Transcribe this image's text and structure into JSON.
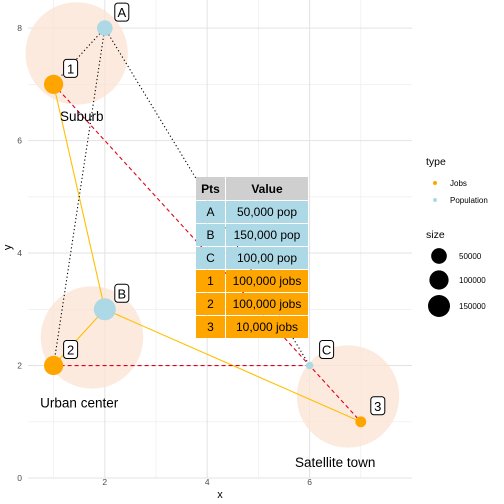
{
  "chart_data": {
    "type": "scatter",
    "xlabel": "x",
    "ylabel": "y",
    "xlim": [
      0.5,
      8
    ],
    "ylim": [
      0,
      8.5
    ],
    "x_ticks": [
      2,
      4,
      6
    ],
    "y_ticks": [
      0,
      2,
      4,
      6,
      8
    ],
    "grid": true,
    "legend_position": "right",
    "colors": {
      "jobs": "#FFA500",
      "population": "#ADD8E6",
      "circle_fill": "#FBE3D3",
      "gold_line": "#FFC000",
      "red_dash": "#E0001B",
      "dotted": "#000000",
      "table_header": "#CFCFCF"
    },
    "areas": [
      {
        "label": "Suburb",
        "x": 1.45,
        "y": 7.55,
        "label_x": 1.55,
        "label_y": 6.35
      },
      {
        "label": "Urban center",
        "x": 1.75,
        "y": 2.5,
        "label_x": 1.5,
        "label_y": 1.25
      },
      {
        "label": "Satellite town",
        "x": 6.75,
        "y": 1.45,
        "label_x": 6.5,
        "label_y": 0.2
      }
    ],
    "area_radius": 1.0,
    "points": [
      {
        "id": "A",
        "x": 2,
        "y": 8,
        "type": "Population",
        "value": 50000
      },
      {
        "id": "B",
        "x": 2,
        "y": 3,
        "type": "Population",
        "value": 150000
      },
      {
        "id": "C",
        "x": 6,
        "y": 2,
        "type": "Population",
        "value": 100
      },
      {
        "id": "1",
        "x": 1,
        "y": 7,
        "type": "Jobs",
        "value": 100000
      },
      {
        "id": "2",
        "x": 1,
        "y": 2,
        "type": "Jobs",
        "value": 100000
      },
      {
        "id": "3",
        "x": 7,
        "y": 1,
        "type": "Jobs",
        "value": 10000
      }
    ],
    "gold_lines": [
      [
        "1",
        "B"
      ],
      [
        "B",
        "2"
      ],
      [
        "B",
        "3"
      ]
    ],
    "red_dashed_lines": [
      [
        "1",
        "3"
      ],
      [
        "2",
        "C"
      ]
    ],
    "dotted_lines": [
      [
        "2",
        "A"
      ],
      [
        "A",
        "C"
      ],
      [
        "A",
        "1"
      ]
    ],
    "legend": {
      "type_title": "type",
      "type_items": [
        {
          "label": "Jobs",
          "color": "#FFA500"
        },
        {
          "label": "Population",
          "color": "#ADD8E6"
        }
      ],
      "size_title": "size",
      "size_items": [
        {
          "label": "50000",
          "value": 50000
        },
        {
          "label": "100000",
          "value": 100000
        },
        {
          "label": "150000",
          "value": 150000
        }
      ]
    },
    "table": {
      "headers": [
        "Pts",
        "Value"
      ],
      "rows": [
        {
          "pt": "A",
          "value": "50,000 pop",
          "kind": "population"
        },
        {
          "pt": "B",
          "value": "150,000 pop",
          "kind": "population"
        },
        {
          "pt": "C",
          "value": "100,00 pop",
          "kind": "population"
        },
        {
          "pt": "1",
          "value": "100,000 jobs",
          "kind": "jobs"
        },
        {
          "pt": "2",
          "value": "100,000 jobs",
          "kind": "jobs"
        },
        {
          "pt": "3",
          "value": "10,000 jobs",
          "kind": "jobs"
        }
      ]
    }
  }
}
